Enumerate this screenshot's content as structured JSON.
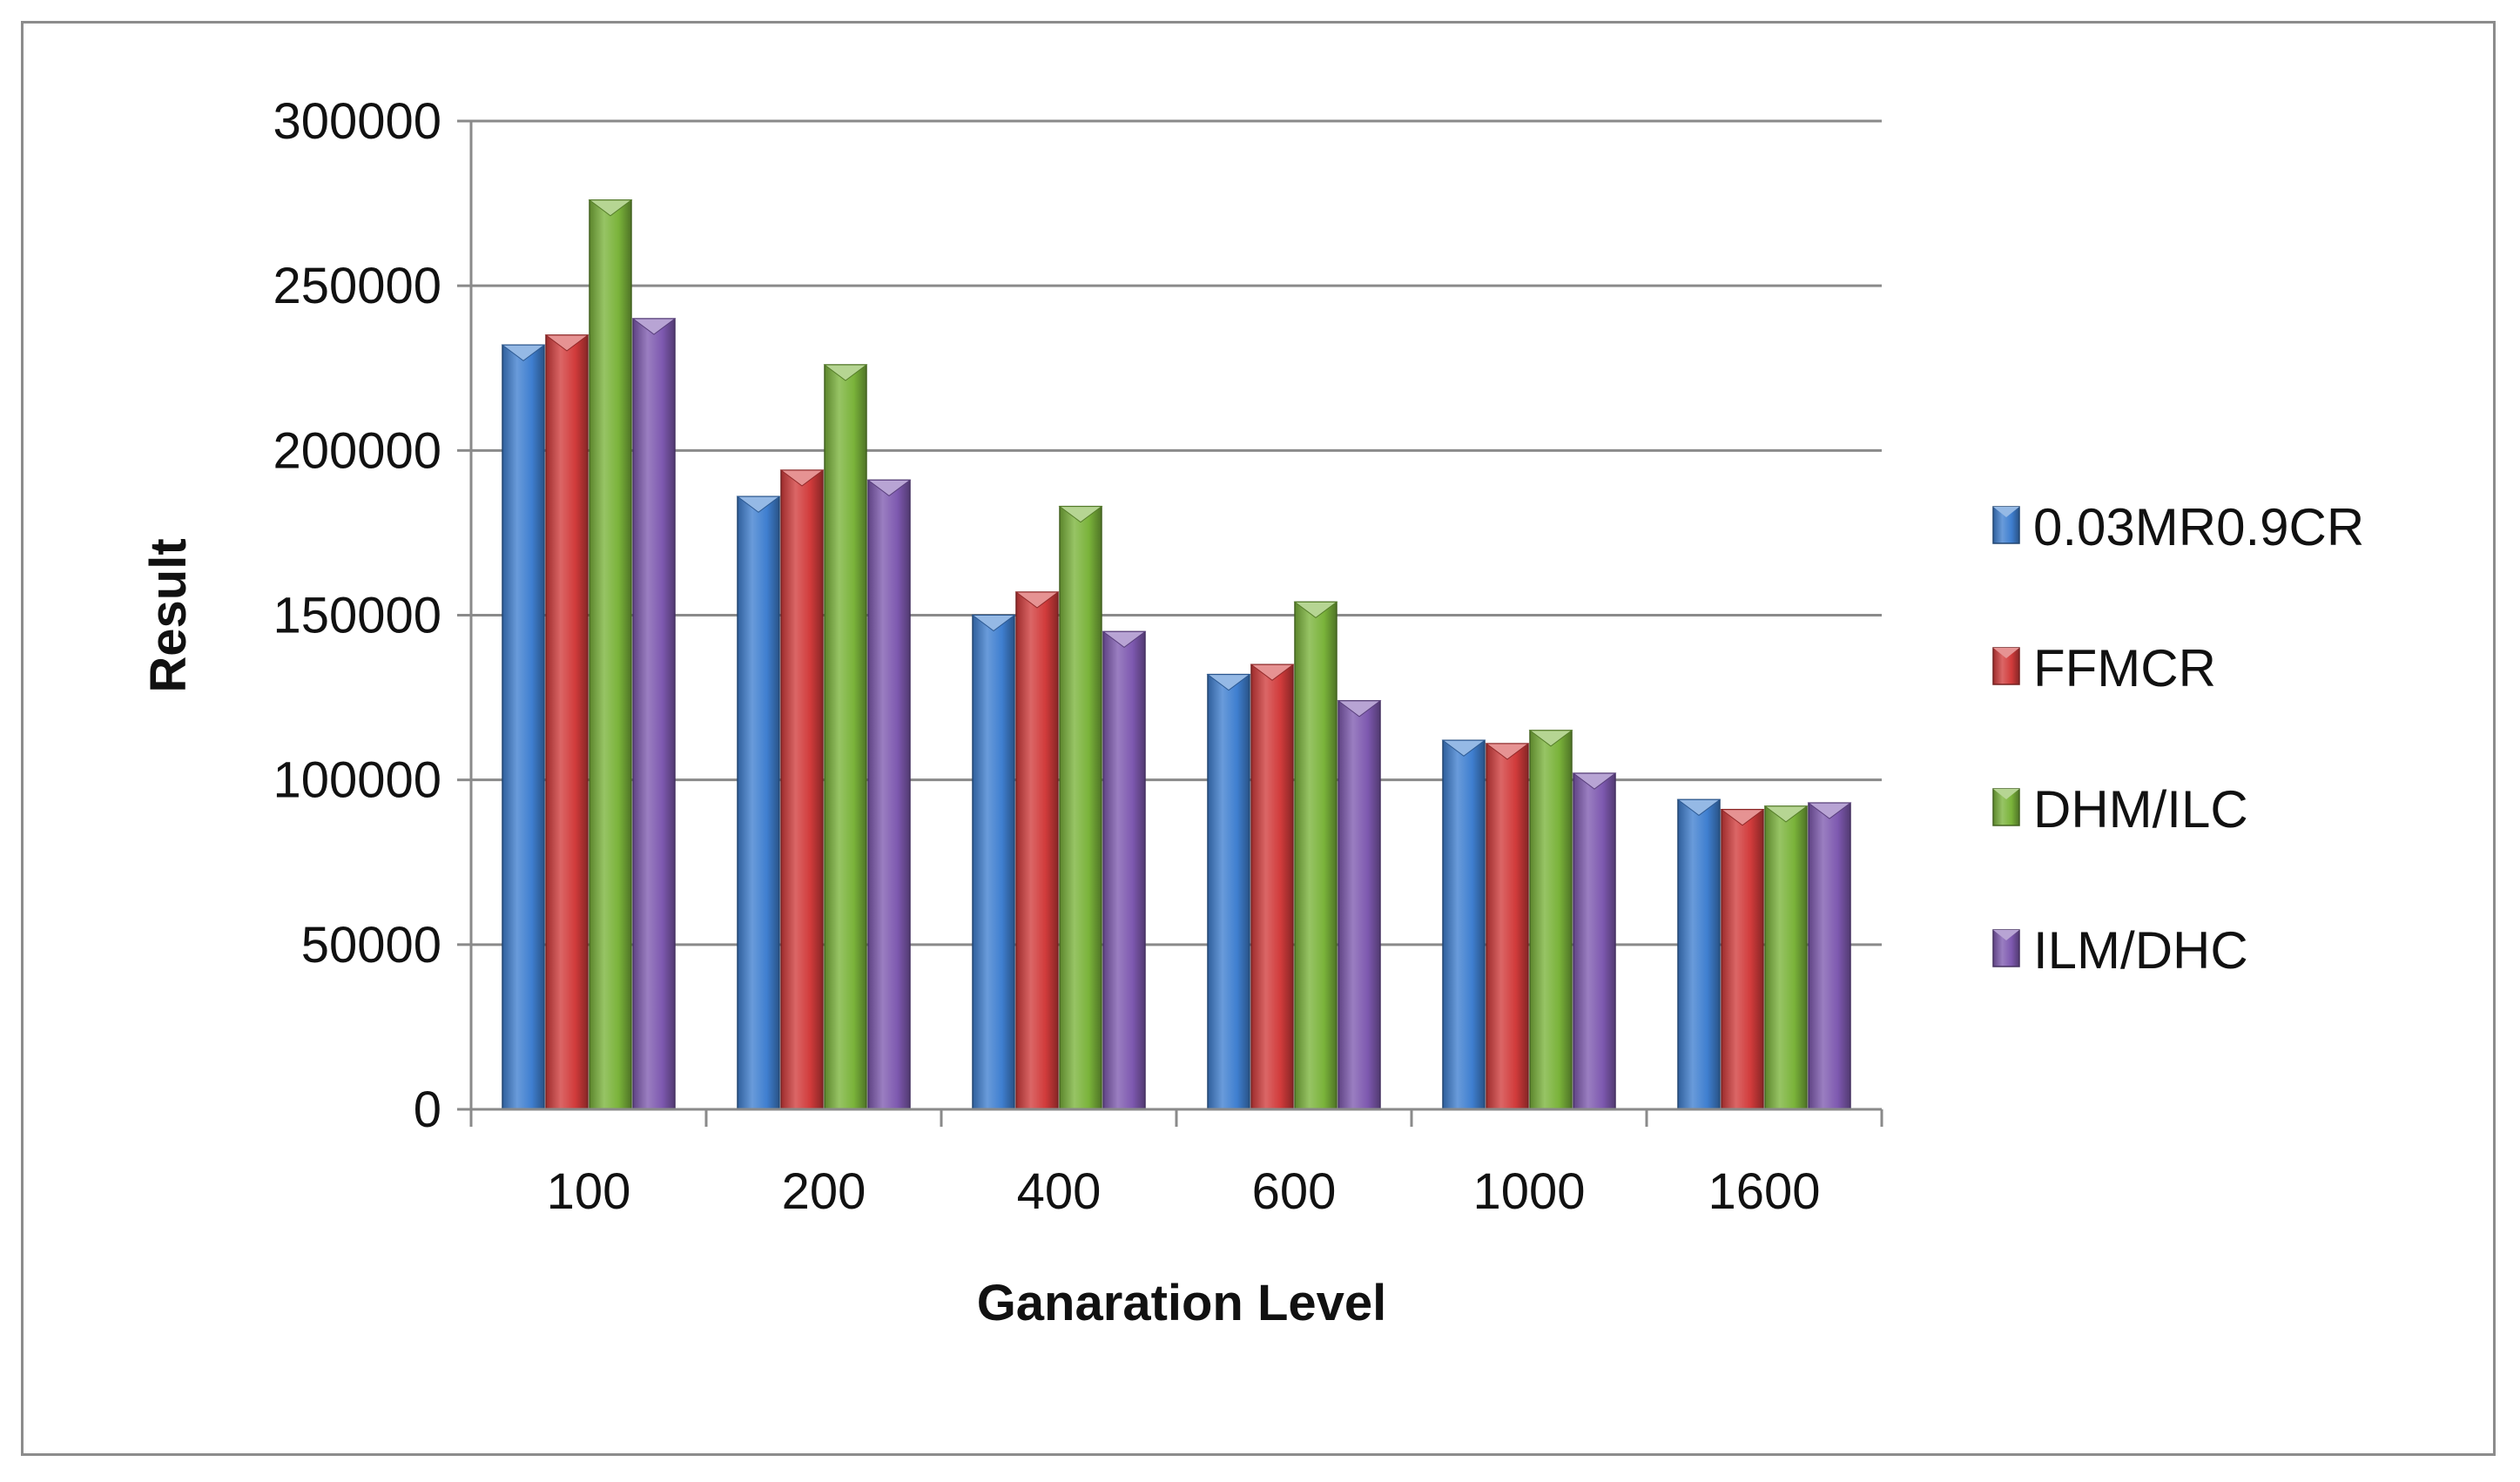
{
  "chart_data": {
    "type": "bar",
    "title": "",
    "xlabel": "Ganaration Level",
    "ylabel": "Result",
    "categories": [
      "100",
      "200",
      "400",
      "600",
      "1000",
      "1600"
    ],
    "ylim": [
      0,
      300000
    ],
    "yticks": [
      0,
      50000,
      100000,
      150000,
      200000,
      250000,
      300000
    ],
    "ytick_labels": [
      "0",
      "50000",
      "100000",
      "150000",
      "200000",
      "250000",
      "300000"
    ],
    "grid": true,
    "legend_position": "right",
    "series": [
      {
        "name": "0.03MR0.9CR",
        "color": "#3f7fd0",
        "values": [
          232000,
          186000,
          150000,
          132000,
          112000,
          94000
        ]
      },
      {
        "name": "FFMCR",
        "color": "#d13b3b",
        "values": [
          235000,
          194000,
          157000,
          135000,
          111000,
          91000
        ]
      },
      {
        "name": "DHM/ILC",
        "color": "#7ab33a",
        "values": [
          276000,
          226000,
          183000,
          154000,
          115000,
          92000
        ]
      },
      {
        "name": "ILM/DHC",
        "color": "#7e59b0",
        "values": [
          240000,
          191000,
          145000,
          124000,
          102000,
          93000
        ]
      }
    ]
  }
}
